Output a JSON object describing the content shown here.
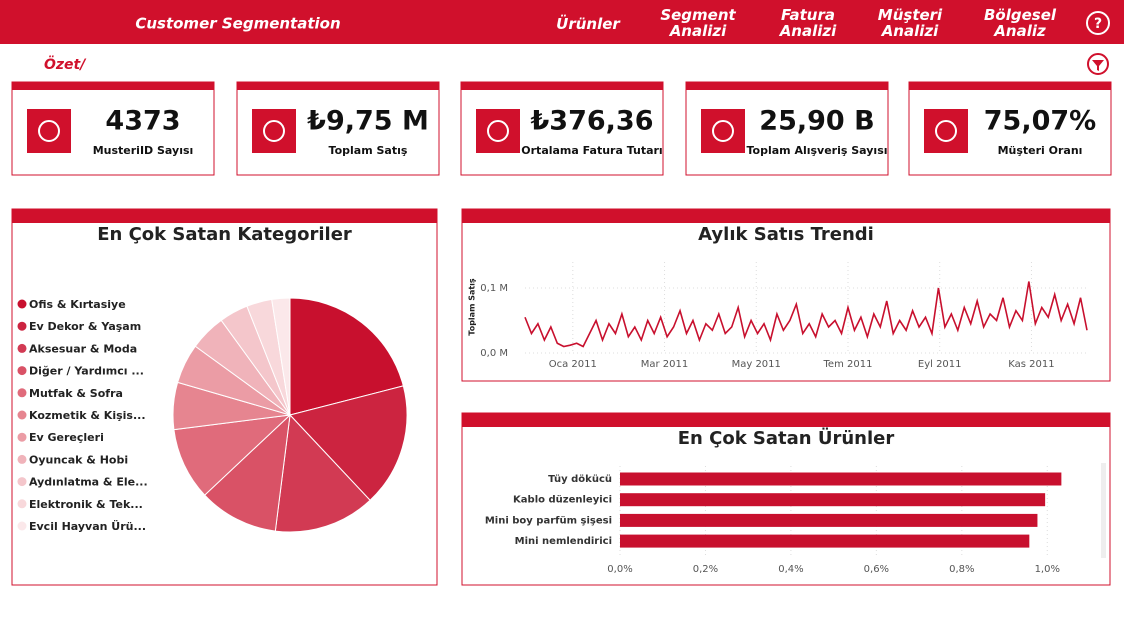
{
  "header": {
    "title": "Customer Segmentation",
    "menu": [
      "Ürünler",
      "Segment Analizi",
      "Fatura Analizi",
      "Müşteri Analizi",
      "Bölgesel Analiz"
    ]
  },
  "breadcrumb": "Özet/",
  "kpis": [
    {
      "value": "4373",
      "label": "MusteriID Sayısı"
    },
    {
      "value": "₺9,75 M",
      "label": "Toplam Satış"
    },
    {
      "value": "₺376,36",
      "label": "Ortalama Fatura Tutarı"
    },
    {
      "value": "25,90 B",
      "label": "Toplam Alışveriş Sayısı"
    },
    {
      "value": "75,07%",
      "label": "Müşteri Oranı"
    }
  ],
  "chart_data": [
    {
      "type": "pie",
      "title": "En Çok Satan Kategoriler",
      "categories": [
        "Ofis & Kırtasiye",
        "Ev Dekor & Yaşam",
        "Aksesuar & Moda",
        "Diğer / Yardımcı ...",
        "Mutfak & Sofra",
        "Kozmetik & Kişis...",
        "Ev Gereçleri",
        "Oyuncak & Hobi",
        "Aydınlatma & Ele...",
        "Elektronik & Tek...",
        "Evcil Hayvan Ürü..."
      ],
      "values": [
        21,
        17,
        14,
        11,
        10,
        6.5,
        5.5,
        5,
        4,
        3.5,
        2.5
      ],
      "colors": [
        "#c8102e",
        "#cc2440",
        "#d23a53",
        "#d95266",
        "#e06b7b",
        "#e68590",
        "#eb9ca5",
        "#f0b3ba",
        "#f4c6cb",
        "#f8d8db",
        "#fbe8ea"
      ]
    },
    {
      "type": "line",
      "title": "Aylık Satıs Trendi",
      "ylabel": "Toplam Satış",
      "color": "#c8102e",
      "values": [
        0.055,
        0.03,
        0.045,
        0.02,
        0.04,
        0.015,
        0.01,
        0.012,
        0.015,
        0.01,
        0.03,
        0.05,
        0.02,
        0.045,
        0.03,
        0.06,
        0.025,
        0.04,
        0.02,
        0.05,
        0.03,
        0.055,
        0.025,
        0.04,
        0.065,
        0.03,
        0.05,
        0.02,
        0.045,
        0.035,
        0.06,
        0.03,
        0.04,
        0.07,
        0.025,
        0.05,
        0.03,
        0.045,
        0.02,
        0.06,
        0.035,
        0.05,
        0.075,
        0.03,
        0.045,
        0.025,
        0.06,
        0.04,
        0.05,
        0.03,
        0.07,
        0.035,
        0.055,
        0.025,
        0.06,
        0.04,
        0.08,
        0.03,
        0.05,
        0.035,
        0.065,
        0.04,
        0.055,
        0.03,
        0.1,
        0.04,
        0.06,
        0.035,
        0.07,
        0.045,
        0.08,
        0.04,
        0.06,
        0.05,
        0.085,
        0.04,
        0.065,
        0.05,
        0.11,
        0.045,
        0.07,
        0.055,
        0.09,
        0.05,
        0.075,
        0.045,
        0.085,
        0.035
      ],
      "xlim": [
        0,
        87
      ],
      "xticks": [
        {
          "value": 7.4,
          "label": "Oca 2011"
        },
        {
          "value": 21.6,
          "label": "Mar 2011"
        },
        {
          "value": 35.8,
          "label": "May 2011"
        },
        {
          "value": 50,
          "label": "Tem 2011"
        },
        {
          "value": 64.2,
          "label": "Eyl 2011"
        },
        {
          "value": 78.4,
          "label": "Kas 2011"
        }
      ],
      "ylim": [
        0,
        0.14
      ],
      "yticks": [
        {
          "value": 0,
          "label": "0,0 M"
        },
        {
          "value": 0.1,
          "label": "0,1 M"
        }
      ],
      "grid": true
    },
    {
      "type": "hbar",
      "title": "En Çok Satan Ürünler",
      "color": "#c8102e",
      "categories": [
        "Tüy dökücü",
        "Kablo düzenleyici",
        "Mini boy parfüm şişesi",
        "Mini nemlendirici"
      ],
      "values": [
        1.033,
        0.995,
        0.977,
        0.958
      ],
      "xlim": [
        0,
        1.1
      ],
      "xticks": [
        {
          "value": 0,
          "label": "0,0%"
        },
        {
          "value": 0.2,
          "label": "0,2%"
        },
        {
          "value": 0.4,
          "label": "0,4%"
        },
        {
          "value": 0.6,
          "label": "0,6%"
        },
        {
          "value": 0.8,
          "label": "0,8%"
        },
        {
          "value": 1,
          "label": "1,0%"
        }
      ],
      "grid": true
    }
  ]
}
